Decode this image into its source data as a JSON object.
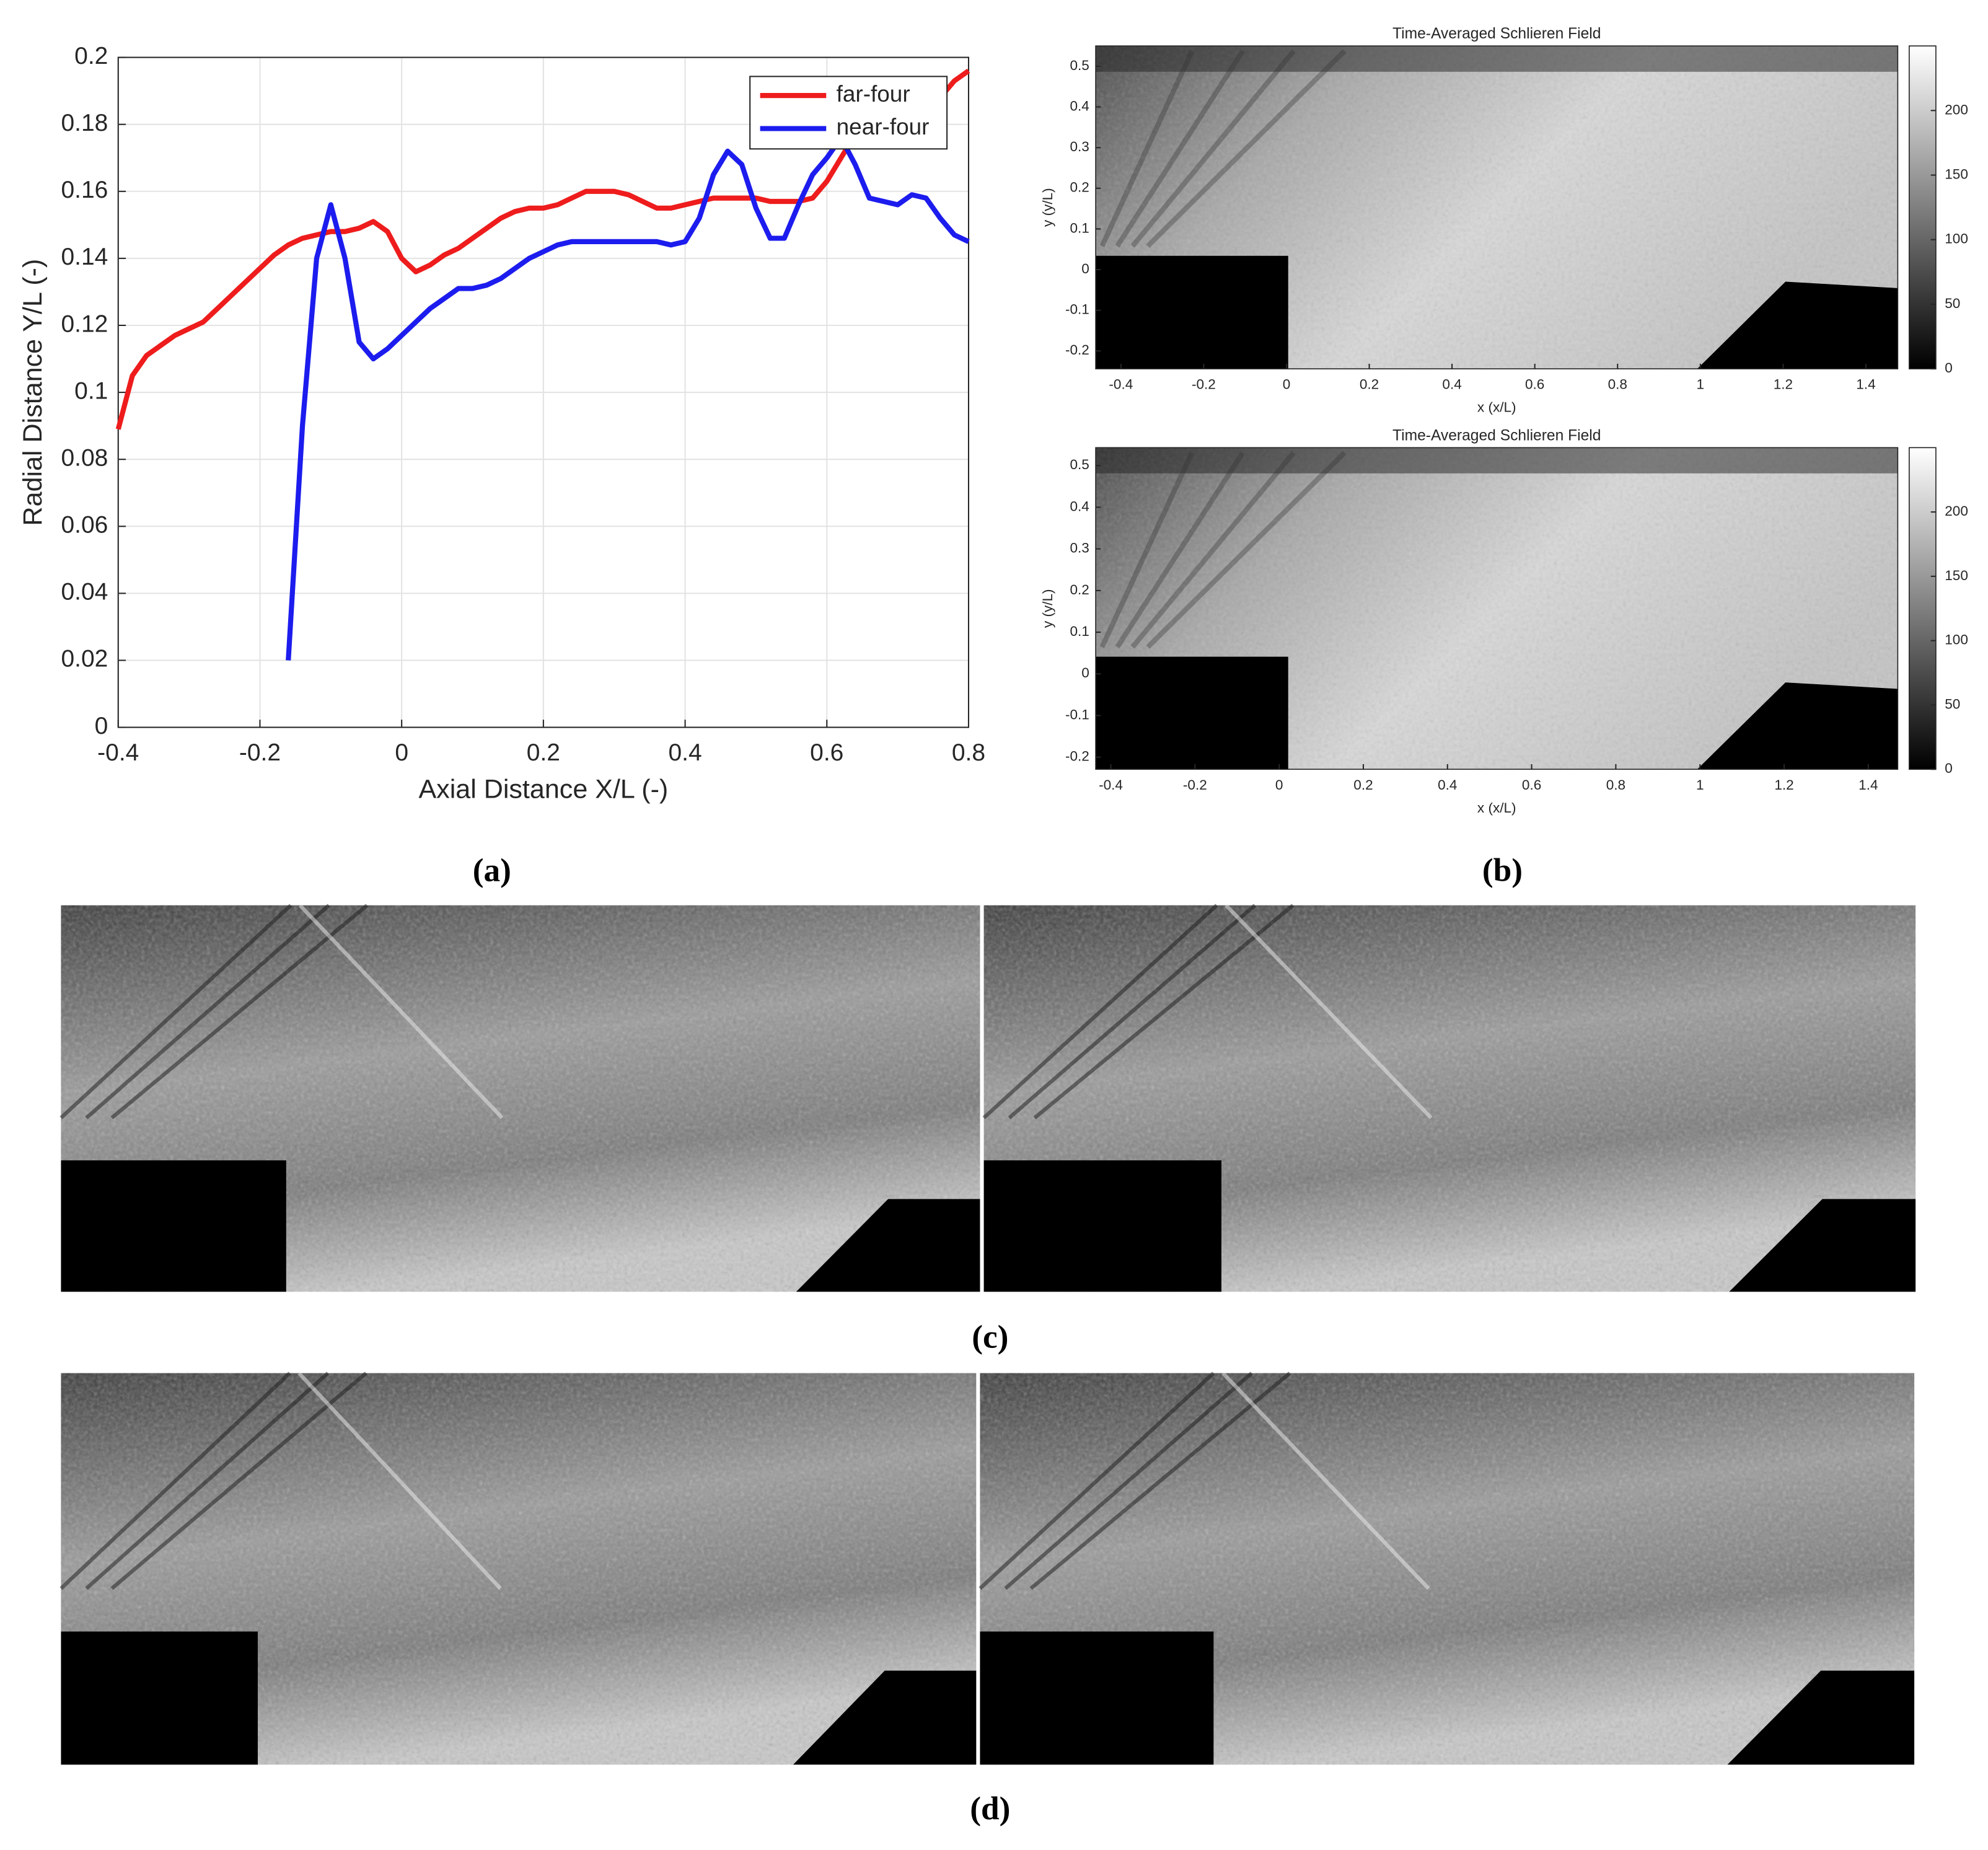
{
  "chart_data": [
    {
      "type": "line",
      "xlabel": "Axial Distance X/L (-)",
      "ylabel": "Radial Distance Y/L (-)",
      "x": [
        -0.4,
        -0.38,
        -0.36,
        -0.34,
        -0.32,
        -0.3,
        -0.28,
        -0.26,
        -0.24,
        -0.22,
        -0.2,
        -0.18,
        -0.16,
        -0.14,
        -0.12,
        -0.1,
        -0.08,
        -0.06,
        -0.04,
        -0.02,
        0,
        0.02,
        0.04,
        0.06,
        0.08,
        0.1,
        0.12,
        0.14,
        0.16,
        0.18,
        0.2,
        0.22,
        0.24,
        0.26,
        0.28,
        0.3,
        0.32,
        0.34,
        0.36,
        0.38,
        0.4,
        0.42,
        0.44,
        0.46,
        0.48,
        0.5,
        0.52,
        0.54,
        0.56,
        0.58,
        0.6,
        0.62,
        0.64,
        0.66,
        0.68,
        0.7,
        0.72,
        0.74,
        0.76,
        0.78,
        0.8
      ],
      "series": [
        {
          "name": "far-four",
          "color": "#ee1c1c",
          "values": [
            0.089,
            0.105,
            0.111,
            0.114,
            0.117,
            0.119,
            0.121,
            0.125,
            0.129,
            0.133,
            0.137,
            0.141,
            0.144,
            0.146,
            0.147,
            0.148,
            0.148,
            0.149,
            0.151,
            0.148,
            0.14,
            0.136,
            0.138,
            0.141,
            0.143,
            0.146,
            0.149,
            0.152,
            0.154,
            0.155,
            0.155,
            0.156,
            0.158,
            0.16,
            0.16,
            0.16,
            0.159,
            0.157,
            0.155,
            0.155,
            0.156,
            0.157,
            0.158,
            0.158,
            0.158,
            0.158,
            0.157,
            0.157,
            0.157,
            0.158,
            0.163,
            0.17,
            0.177,
            0.18,
            0.181,
            0.181,
            0.183,
            0.186,
            0.188,
            0.193,
            0.196
          ]
        },
        {
          "name": "near-four",
          "color": "#1c1cee",
          "values": [
            null,
            null,
            null,
            null,
            null,
            null,
            null,
            null,
            null,
            null,
            null,
            null,
            0.02,
            0.09,
            0.14,
            0.156,
            0.14,
            0.115,
            0.11,
            0.113,
            0.117,
            0.121,
            0.125,
            0.128,
            0.131,
            0.131,
            0.132,
            0.134,
            0.137,
            0.14,
            0.142,
            0.144,
            0.145,
            0.145,
            0.145,
            0.145,
            0.145,
            0.145,
            0.145,
            0.144,
            0.145,
            0.152,
            0.165,
            0.172,
            0.168,
            0.155,
            0.146,
            0.146,
            0.156,
            0.165,
            0.17,
            0.176,
            0.168,
            0.158,
            0.157,
            0.156,
            0.159,
            0.158,
            0.152,
            0.147,
            0.145
          ]
        }
      ],
      "xlim": [
        -0.4,
        0.8
      ],
      "xticks": [
        -0.4,
        -0.2,
        0,
        0.2,
        0.4,
        0.6,
        0.8
      ],
      "ylim": [
        0,
        0.2
      ],
      "yticks": [
        0,
        0.02,
        0.04,
        0.06,
        0.08,
        0.1,
        0.12,
        0.14,
        0.16,
        0.18,
        0.2
      ],
      "grid": true,
      "legend": "top-right"
    },
    {
      "type": "image",
      "title": "Time-Averaged Schlieren Field",
      "xlabel": "x (x/L)",
      "ylabel": "y (y/L)",
      "xlim": [
        -0.461,
        1.477
      ],
      "xticks": [
        -0.4,
        -0.2,
        0,
        0.2,
        0.4,
        0.6,
        0.8,
        1,
        1.2,
        1.4
      ],
      "ylim": [
        -0.244,
        0.55
      ],
      "yticks": [
        -0.2,
        -0.1,
        0,
        0.1,
        0.2,
        0.3,
        0.4,
        0.5
      ],
      "clim": [
        0,
        250
      ],
      "cticks": [
        0,
        50,
        100,
        150,
        200
      ]
    },
    {
      "type": "image",
      "title": "Time-Averaged Schlieren Field",
      "xlabel": "x (x/L)",
      "ylabel": "y (y/L)",
      "xlim": [
        -0.436,
        1.47
      ],
      "xticks": [
        -0.4,
        -0.2,
        0,
        0.2,
        0.4,
        0.6,
        0.8,
        1,
        1.2,
        1.4
      ],
      "ylim": [
        -0.229,
        0.543
      ],
      "yticks": [
        -0.2,
        -0.1,
        0,
        0.1,
        0.2,
        0.3,
        0.4,
        0.5
      ],
      "clim": [
        0,
        250
      ],
      "cticks": [
        0,
        50,
        100,
        150,
        200
      ]
    }
  ],
  "captions": [
    "(a)",
    "(b)",
    "(c)",
    "(d)"
  ]
}
